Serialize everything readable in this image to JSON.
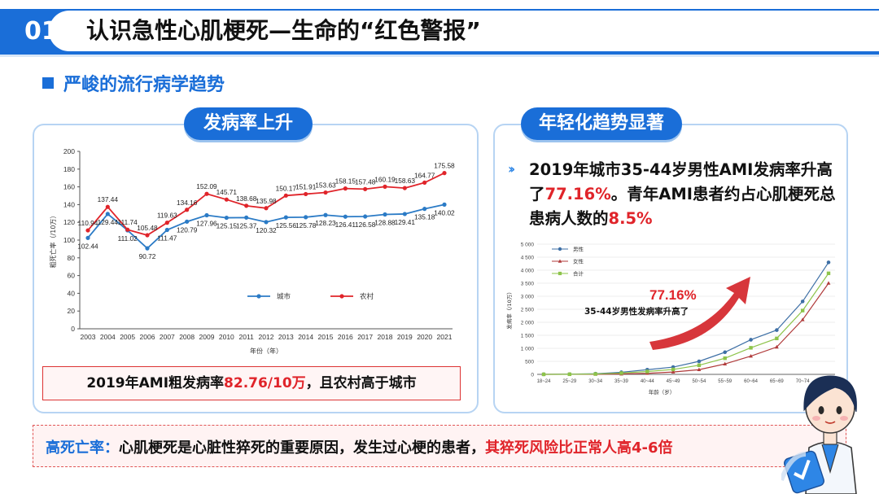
{
  "header": {
    "number": "01",
    "title": "认识急性心肌梗死—生命的“红色警报”"
  },
  "subtitle": "严峻的流行病学趋势",
  "left_panel": {
    "pill": "发病率上升",
    "note_prefix": "2019年AMI粗发病率",
    "note_value": "82.76/10万",
    "note_suffix": "，且农村高于城市"
  },
  "right_panel": {
    "pill": "年轻化趋势显著",
    "text_1": "2019年城市35-44岁男性AMI发病率升高了",
    "text_pct": "77.16%",
    "text_2": "。青年AMI患者约占心肌梗死总患病人数的",
    "text_share": "8.5%",
    "callout_value": "77.16%",
    "callout_label": "35-44岁男性发病率升高了"
  },
  "bottom": {
    "label": "高死亡率：",
    "text": "心肌梗死是心脏性猝死的重要原因，发生过心梗的患者，",
    "highlight": "其猝死风险比正常人高4-6倍"
  },
  "colors": {
    "accent": "#1a6ed8",
    "urban": "#2b7bc6",
    "rural": "#e0242a",
    "male": "#3d6fa5",
    "female": "#b03a3a",
    "total": "#8dc44a"
  },
  "chart_data": [
    {
      "type": "line",
      "ylabel": "粗死亡率（/10万）",
      "xlabel": "年份（年）",
      "ylim": [
        0,
        200
      ],
      "yticks": [
        0,
        20,
        40,
        60,
        80,
        100,
        120,
        140,
        160,
        180,
        200
      ],
      "categories": [
        "2003",
        "2004",
        "2005",
        "2006",
        "2007",
        "2008",
        "2009",
        "2010",
        "2011",
        "2012",
        "2013",
        "2014",
        "2015",
        "2016",
        "2017",
        "2018",
        "2019",
        "2020",
        "2021"
      ],
      "series": [
        {
          "name": "城市",
          "values": [
            102.44,
            129.44,
            111.02,
            90.72,
            111.47,
            120.79,
            127.96,
            125.15,
            125.37,
            120.32,
            125.56,
            125.78,
            128.23,
            126.41,
            126.58,
            128.88,
            129.41,
            135.18,
            140.02
          ],
          "labels": [
            "102.44",
            "129.44",
            "111.02",
            "90.72",
            "111.47",
            "120.79",
            "127.96",
            "125.15",
            "125.37",
            "120.32",
            "125.56",
            "125.78",
            "128.23",
            "126.41",
            "126.58",
            "128.88",
            "129.41",
            "135.18",
            "140.02"
          ]
        },
        {
          "name": "农村",
          "values": [
            110.94,
            137.44,
            111.74,
            105.48,
            119.63,
            134.16,
            152.09,
            145.71,
            138.68,
            135.98,
            150.17,
            151.91,
            153.63,
            158.15,
            157.48,
            160.19,
            158.63,
            164.77,
            175.58
          ],
          "labels": [
            "110.94",
            "137.44",
            "111.74",
            "105.48",
            "119.63",
            "134.16",
            "152.09",
            "145.71",
            "138.68",
            "135.98",
            "150.17",
            "151.91",
            "153.63",
            "158.15",
            "157.48",
            "160.19",
            "158.63",
            "164.77",
            "175.58"
          ]
        }
      ],
      "legend": "center"
    },
    {
      "type": "line",
      "ylabel": "发病率（/10万）",
      "xlabel": "年龄（岁）",
      "ylim": [
        0,
        5000
      ],
      "yticks": [
        0,
        500,
        1000,
        1500,
        2000,
        2500,
        3000,
        3500,
        4000,
        4500,
        5000
      ],
      "yticklabels": [
        "0",
        "500",
        "1 000",
        "1 500",
        "2 000",
        "2 500",
        "3 000",
        "3 500",
        "4 000",
        "4 500",
        "5 000"
      ],
      "categories": [
        "18~24",
        "25~29",
        "30~34",
        "35~39",
        "40~44",
        "45~49",
        "50~54",
        "55~59",
        "60~64",
        "65~69",
        "70~74",
        "≥ 75"
      ],
      "series": [
        {
          "name": "男性",
          "values": [
            2,
            8,
            25,
            80,
            180,
            280,
            500,
            850,
            1330,
            1700,
            2800,
            4300
          ]
        },
        {
          "name": "女性",
          "values": [
            1,
            2,
            5,
            15,
            40,
            90,
            180,
            400,
            700,
            1050,
            2100,
            3500
          ]
        },
        {
          "name": "合计",
          "values": [
            1,
            5,
            15,
            50,
            110,
            190,
            350,
            620,
            1020,
            1380,
            2450,
            3880
          ]
        }
      ],
      "legend": "top-left"
    }
  ]
}
